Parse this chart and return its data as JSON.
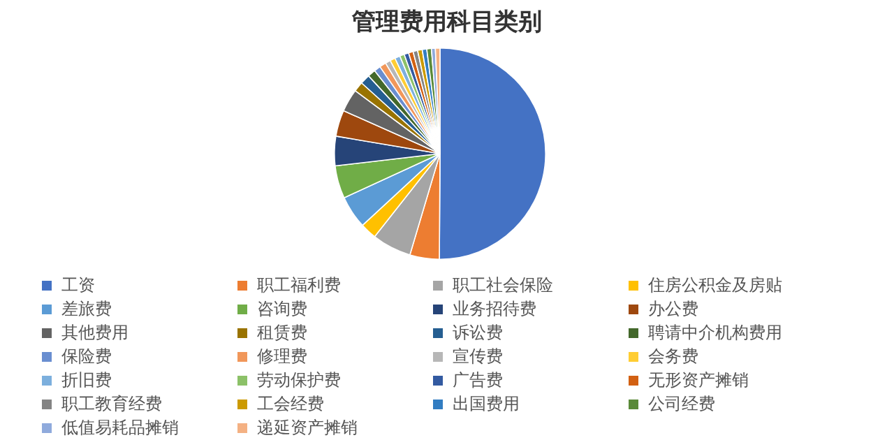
{
  "chart_data": {
    "type": "pie",
    "title": "管理费用科目类别",
    "categories": [
      "工资",
      "职工福利费",
      "职工社会保险",
      "住房公积金及房贴",
      "差旅费",
      "咨询费",
      "业务招待费",
      "办公费",
      "其他费用",
      "租赁费",
      "诉讼费",
      "聘请中介机构费用",
      "保险费",
      "修理费",
      "宣传费",
      "会务费",
      "折旧费",
      "劳动保护费",
      "广告费",
      "无形资产摊销",
      "职工教育经费",
      "工会经费",
      "出国费用",
      "公司经费",
      "低值易耗品摊销",
      "递延资产摊销"
    ],
    "values": [
      50,
      4.5,
      6,
      2.5,
      5,
      5,
      4.5,
      4,
      3.5,
      1.5,
      1.5,
      1.2,
      1,
      1,
      0.8,
      0.8,
      0.8,
      0.7,
      0.7,
      0.7,
      0.7,
      0.7,
      0.7,
      0.7,
      0.6,
      0.7
    ],
    "colors": [
      "#4472c4",
      "#ed7d31",
      "#a5a5a5",
      "#ffc000",
      "#5b9bd5",
      "#70ad47",
      "#264478",
      "#9e480e",
      "#636363",
      "#997300",
      "#255e91",
      "#43682b",
      "#698ed0",
      "#f1975a",
      "#b7b7b7",
      "#ffcd33",
      "#7cafdd",
      "#8cc168",
      "#335aa1",
      "#d26012",
      "#848484",
      "#cc9a00",
      "#327dc2",
      "#5a8a39",
      "#8faadc",
      "#f4b183"
    ],
    "legend": "bottom"
  }
}
